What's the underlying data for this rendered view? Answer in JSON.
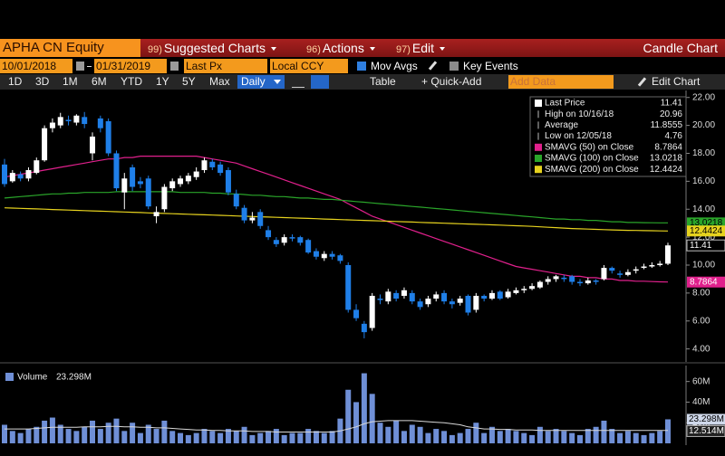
{
  "toolbar": {
    "security": "APHA CN Equity",
    "menus": [
      {
        "num": "99)",
        "label": "Suggested Charts"
      },
      {
        "num": "96)",
        "label": "Actions"
      },
      {
        "num": "97)",
        "label": "Edit"
      }
    ],
    "chart_kind": "Candle Chart",
    "start_date": "10/01/2018",
    "end_date": "01/31/2019",
    "field": "Last Px",
    "currency": "Local CCY",
    "mov_avgs": "Mov Avgs",
    "key_events": "Key Events",
    "periods": [
      "1D",
      "3D",
      "1M",
      "6M",
      "YTD",
      "1Y",
      "5Y",
      "Max"
    ],
    "frequency": "Daily",
    "table": "Table",
    "quick_add": "+ Quick-Add",
    "add_data": "Add Data",
    "edit_chart": "Edit Chart"
  },
  "chart_data": {
    "type": "candlestick",
    "up_color": "#ffffff",
    "down_color": "#1f7fe8",
    "ylim": [
      3.2,
      22.5
    ],
    "yticks": [
      {
        "value": 4,
        "label": "4.00"
      },
      {
        "value": 6,
        "label": "6.00"
      },
      {
        "value": 8,
        "label": "8.00"
      },
      {
        "value": 10,
        "label": "10.00"
      },
      {
        "value": 12,
        "label": "12.00"
      },
      {
        "value": 14,
        "label": "14.00"
      },
      {
        "value": 16,
        "label": "16.00"
      },
      {
        "value": 18,
        "label": "18.00"
      },
      {
        "value": 20,
        "label": "20.00"
      },
      {
        "value": 22,
        "label": "22.00"
      }
    ],
    "grid": false,
    "legend": "upper right",
    "open": [
      17.2,
      16.0,
      16.5,
      16.2,
      16.6,
      17.5,
      19.8,
      20.0,
      20.4,
      20.2,
      20.6,
      18.0,
      20.5,
      20.3,
      18.0,
      15.2,
      17.0,
      16.0,
      16.2,
      13.5,
      14.0,
      15.5,
      15.8,
      16.0,
      16.3,
      16.8,
      17.4,
      17.2,
      16.8,
      15.1,
      14.1,
      13.2,
      13.8,
      12.5,
      11.8,
      11.6,
      12.0,
      12.0,
      11.8,
      11.0,
      10.5,
      10.8,
      10.7,
      10.0,
      6.8,
      5.8,
      5.5,
      7.6,
      7.4,
      8.0,
      7.8,
      8.0,
      7.4,
      7.2,
      7.6,
      8.0,
      7.4,
      7.3,
      7.8,
      6.8,
      7.8,
      7.6,
      8.1,
      7.7,
      8.0,
      8.2,
      8.3,
      8.4,
      8.8,
      9.0,
      9.1,
      9.2,
      8.8,
      8.7,
      8.9,
      9.0,
      9.8,
      9.4,
      9.3,
      9.6,
      9.8,
      9.9,
      10.0,
      10.1
    ],
    "high": [
      17.6,
      16.8,
      16.7,
      17.0,
      17.7,
      20.0,
      20.5,
      20.9,
      20.7,
      20.8,
      20.96,
      19.5,
      20.7,
      20.5,
      18.2,
      16.6,
      17.2,
      16.3,
      16.4,
      14.2,
      15.8,
      16.2,
      16.4,
      16.6,
      17.0,
      17.7,
      17.6,
      17.4,
      17.0,
      15.4,
      14.3,
      13.8,
      14.0,
      12.8,
      12.0,
      12.2,
      12.2,
      12.1,
      11.9,
      11.2,
      11.0,
      11.0,
      10.8,
      10.2,
      7.2,
      6.0,
      8.0,
      7.9,
      8.3,
      8.2,
      8.4,
      8.2,
      7.6,
      7.8,
      8.1,
      8.2,
      7.6,
      7.8,
      7.9,
      8.0,
      7.9,
      8.2,
      8.2,
      8.3,
      8.4,
      8.5,
      8.7,
      8.9,
      9.2,
      9.3,
      9.3,
      9.3,
      9.0,
      9.1,
      9.0,
      10.0,
      9.9,
      9.6,
      9.7,
      9.9,
      10.1,
      10.2,
      10.3,
      11.6
    ],
    "low": [
      15.6,
      15.9,
      16.0,
      16.0,
      16.5,
      17.4,
      19.5,
      19.8,
      20.0,
      20.0,
      19.8,
      17.5,
      19.5,
      17.8,
      15.3,
      14.0,
      15.3,
      15.5,
      14.0,
      13.0,
      13.8,
      15.3,
      15.6,
      15.8,
      16.1,
      16.6,
      16.8,
      16.4,
      15.0,
      14.0,
      13.0,
      13.0,
      12.6,
      11.8,
      11.3,
      11.4,
      11.7,
      11.4,
      10.8,
      10.4,
      10.3,
      10.4,
      10.1,
      6.6,
      6.0,
      4.76,
      5.3,
      7.2,
      7.2,
      7.4,
      7.6,
      7.2,
      6.8,
      7.0,
      7.4,
      7.2,
      6.9,
      7.1,
      6.4,
      6.6,
      7.4,
      7.5,
      7.5,
      7.6,
      7.9,
      8.0,
      8.2,
      8.3,
      8.6,
      8.8,
      8.8,
      8.6,
      8.5,
      8.6,
      8.6,
      8.9,
      9.4,
      9.1,
      9.2,
      9.4,
      9.7,
      9.8,
      9.9,
      10.0
    ],
    "close": [
      15.8,
      16.6,
      16.2,
      16.8,
      17.5,
      19.8,
      20.2,
      20.6,
      20.3,
      20.7,
      20.1,
      19.2,
      19.8,
      18.0,
      15.5,
      16.2,
      15.6,
      15.8,
      14.2,
      13.8,
      15.6,
      16.0,
      16.2,
      16.4,
      16.7,
      17.5,
      17.0,
      16.6,
      15.2,
      14.2,
      13.2,
      13.4,
      12.8,
      12.0,
      11.5,
      12.0,
      11.9,
      11.6,
      10.9,
      10.6,
      10.8,
      10.6,
      10.3,
      6.8,
      6.2,
      5.2,
      7.8,
      7.5,
      8.1,
      7.6,
      8.2,
      7.4,
      7.0,
      7.6,
      7.9,
      7.4,
      7.2,
      7.6,
      6.6,
      7.8,
      7.6,
      8.0,
      7.6,
      8.1,
      8.2,
      8.3,
      8.5,
      8.8,
      9.0,
      9.2,
      9.0,
      8.8,
      8.7,
      8.9,
      8.8,
      9.8,
      9.6,
      9.3,
      9.5,
      9.7,
      9.9,
      10.0,
      10.1,
      11.41
    ],
    "stats": {
      "last_label": "Last Price",
      "high_label": "High on 10/16/18",
      "average_label": "Average",
      "average": 11.8555,
      "low_label": "Low on 12/05/18"
    },
    "series": [
      {
        "name": "SMAVG (50)  on Close",
        "color": "#e0208c",
        "values": [
          16.3,
          16.4,
          16.5,
          16.6,
          16.7,
          16.8,
          16.9,
          17.0,
          17.1,
          17.2,
          17.3,
          17.4,
          17.5,
          17.6,
          17.6,
          17.7,
          17.7,
          17.8,
          17.8,
          17.8,
          17.8,
          17.8,
          17.8,
          17.8,
          17.8,
          17.7,
          17.6,
          17.5,
          17.4,
          17.3,
          17.1,
          16.9,
          16.7,
          16.5,
          16.3,
          16.1,
          15.9,
          15.7,
          15.5,
          15.3,
          15.1,
          14.9,
          14.7,
          14.4,
          14.1,
          13.8,
          13.5,
          13.3,
          13.1,
          12.9,
          12.7,
          12.5,
          12.3,
          12.1,
          11.9,
          11.7,
          11.5,
          11.3,
          11.1,
          10.9,
          10.7,
          10.5,
          10.3,
          10.1,
          9.9,
          9.8,
          9.7,
          9.6,
          9.5,
          9.4,
          9.3,
          9.2,
          9.2,
          9.1,
          9.1,
          9.0,
          9.0,
          8.9,
          8.9,
          8.85,
          8.85,
          8.82,
          8.8,
          8.7864
        ]
      },
      {
        "name": "SMAVG (100)  on Close",
        "color": "#2aa52a",
        "values": [
          14.8,
          14.85,
          14.9,
          14.95,
          15.0,
          15.05,
          15.1,
          15.1,
          15.15,
          15.15,
          15.2,
          15.2,
          15.2,
          15.2,
          15.25,
          15.25,
          15.25,
          15.25,
          15.25,
          15.25,
          15.25,
          15.25,
          15.2,
          15.2,
          15.2,
          15.2,
          15.15,
          15.15,
          15.1,
          15.1,
          15.05,
          15.0,
          15.0,
          14.95,
          14.9,
          14.9,
          14.85,
          14.8,
          14.8,
          14.75,
          14.7,
          14.7,
          14.65,
          14.6,
          14.55,
          14.5,
          14.45,
          14.4,
          14.35,
          14.3,
          14.25,
          14.2,
          14.15,
          14.1,
          14.05,
          14.0,
          13.95,
          13.9,
          13.85,
          13.8,
          13.75,
          13.7,
          13.65,
          13.6,
          13.55,
          13.5,
          13.45,
          13.4,
          13.35,
          13.3,
          13.3,
          13.25,
          13.25,
          13.2,
          13.2,
          13.15,
          13.1,
          13.1,
          13.05,
          13.05,
          13.04,
          13.03,
          13.025,
          13.0218
        ]
      },
      {
        "name": "SMAVG (200)  on Close",
        "color": "#e6d21e",
        "values": [
          14.1,
          14.08,
          14.06,
          14.04,
          14.02,
          14.0,
          13.98,
          13.96,
          13.94,
          13.92,
          13.9,
          13.88,
          13.86,
          13.84,
          13.82,
          13.8,
          13.78,
          13.76,
          13.74,
          13.72,
          13.7,
          13.68,
          13.66,
          13.64,
          13.62,
          13.6,
          13.58,
          13.56,
          13.54,
          13.52,
          13.5,
          13.48,
          13.46,
          13.44,
          13.42,
          13.4,
          13.38,
          13.36,
          13.34,
          13.32,
          13.3,
          13.28,
          13.26,
          13.24,
          13.22,
          13.2,
          13.18,
          13.16,
          13.14,
          13.12,
          13.1,
          13.08,
          13.06,
          13.04,
          13.02,
          13.0,
          12.98,
          12.96,
          12.94,
          12.92,
          12.9,
          12.88,
          12.86,
          12.84,
          12.82,
          12.8,
          12.77,
          12.74,
          12.71,
          12.68,
          12.65,
          12.62,
          12.6,
          12.58,
          12.56,
          12.54,
          12.52,
          12.5,
          12.49,
          12.48,
          12.47,
          12.46,
          12.45,
          12.4424
        ]
      }
    ],
    "volume": {
      "name": "Volume",
      "color": "#6f8fd6",
      "last_label": "23.298M",
      "ylim": [
        0,
        72
      ],
      "yticks": [
        {
          "value": 20,
          "label": "20M"
        },
        {
          "value": 40,
          "label": "40M"
        },
        {
          "value": 60,
          "label": "60M"
        }
      ],
      "values": [
        18,
        12,
        10,
        14,
        16,
        22,
        25,
        18,
        14,
        12,
        16,
        22,
        14,
        20,
        24,
        12,
        20,
        10,
        18,
        14,
        22,
        12,
        10,
        8,
        10,
        14,
        12,
        10,
        14,
        12,
        16,
        8,
        10,
        12,
        14,
        8,
        10,
        10,
        14,
        12,
        10,
        12,
        24,
        52,
        40,
        68,
        48,
        20,
        16,
        22,
        12,
        18,
        16,
        10,
        14,
        12,
        8,
        10,
        14,
        20,
        10,
        16,
        12,
        14,
        12,
        10,
        8,
        16,
        12,
        14,
        12,
        10,
        8,
        14,
        16,
        22,
        14,
        10,
        12,
        10,
        8,
        10,
        12,
        23.298
      ],
      "ma": {
        "color": "#d8d8d8",
        "last_label": "12.514M",
        "values": [
          14,
          14,
          14,
          14,
          14.5,
          15,
          15.5,
          15.5,
          15.5,
          15.5,
          16,
          16,
          16,
          16.5,
          16.5,
          16,
          16,
          15.5,
          15.5,
          15,
          15,
          14.5,
          14,
          13.5,
          13,
          13,
          12.5,
          12.5,
          12,
          12,
          12,
          11.5,
          11.5,
          11.5,
          11,
          11,
          11,
          11,
          11,
          11,
          11,
          11,
          12,
          14,
          16,
          19,
          21,
          21.5,
          22,
          22,
          22,
          22,
          21.5,
          21,
          20.5,
          20,
          19,
          18,
          16,
          15,
          14,
          14,
          13.5,
          13.5,
          13,
          13,
          13,
          12.5,
          12.5,
          12.5,
          12.5,
          12.5,
          12.5,
          12.5,
          12.5,
          12.5,
          12.5,
          12.5,
          12.5,
          12.5,
          12.5,
          12.5,
          12.5,
          12.514
        ]
      }
    }
  }
}
